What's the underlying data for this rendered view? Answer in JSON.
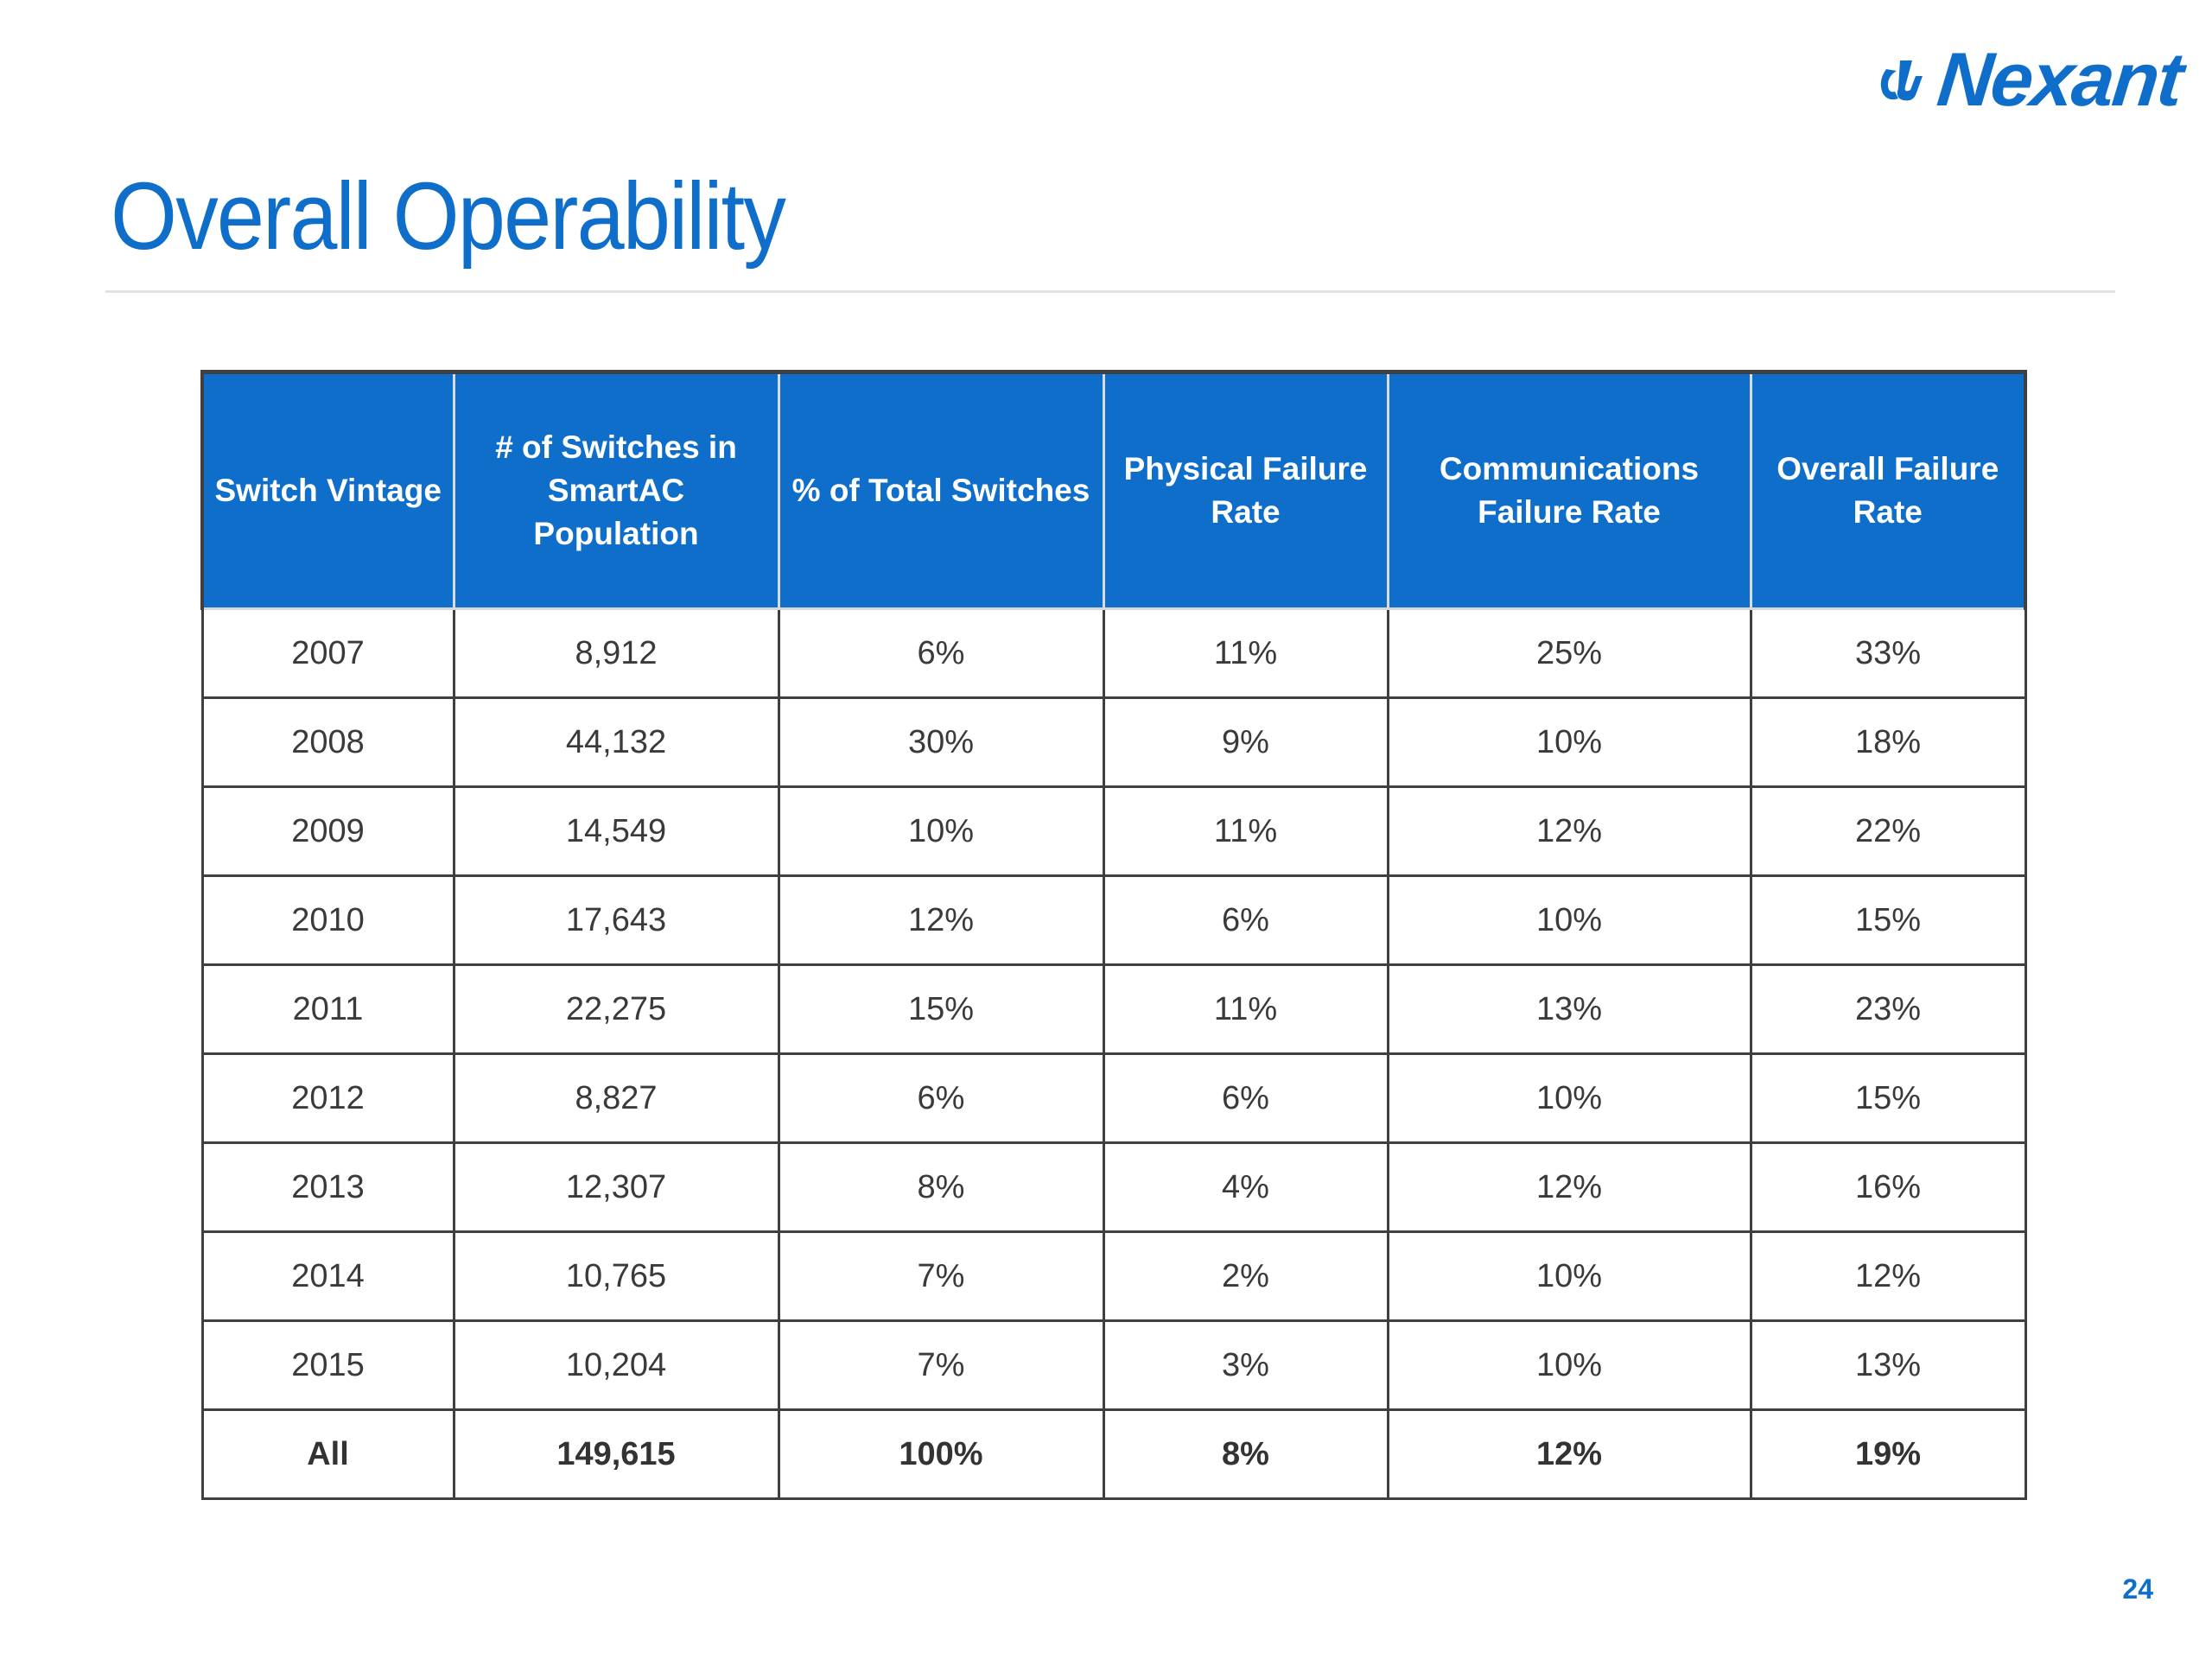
{
  "brand": {
    "name": "Nexant",
    "color": "#0f6ec9"
  },
  "slide": {
    "title": "Overall Operability",
    "page_number": "24"
  },
  "table": {
    "headers": [
      "Switch Vintage",
      "# of Switches in SmartAC Population",
      "% of Total Switches",
      "Physical Failure Rate",
      "Communications Failure Rate",
      "Overall Failure Rate"
    ],
    "rows": [
      [
        "2007",
        "8,912",
        "6%",
        "11%",
        "25%",
        "33%"
      ],
      [
        "2008",
        "44,132",
        "30%",
        "9%",
        "10%",
        "18%"
      ],
      [
        "2009",
        "14,549",
        "10%",
        "11%",
        "12%",
        "22%"
      ],
      [
        "2010",
        "17,643",
        "12%",
        "6%",
        "10%",
        "15%"
      ],
      [
        "2011",
        "22,275",
        "15%",
        "11%",
        "13%",
        "23%"
      ],
      [
        "2012",
        "8,827",
        "6%",
        "6%",
        "10%",
        "15%"
      ],
      [
        "2013",
        "12,307",
        "8%",
        "4%",
        "12%",
        "16%"
      ],
      [
        "2014",
        "10,765",
        "7%",
        "2%",
        "10%",
        "12%"
      ],
      [
        "2015",
        "10,204",
        "7%",
        "3%",
        "10%",
        "13%"
      ]
    ],
    "total": [
      "All",
      "149,615",
      "100%",
      "8%",
      "12%",
      "19%"
    ]
  }
}
